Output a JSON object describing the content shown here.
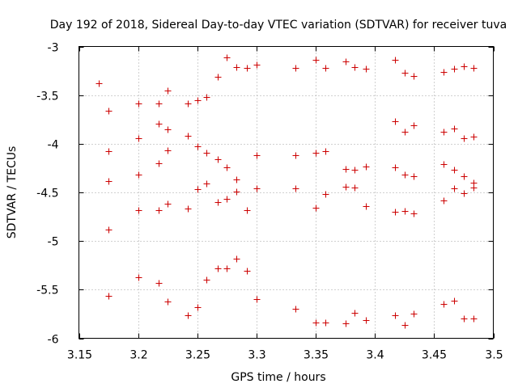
{
  "chart_data": {
    "type": "scatter",
    "title": "Day 192 of 2018, Sidereal Day-to-day VTEC variation (SDTVAR) for receiver tuva",
    "xlabel": "GPS time / hours",
    "ylabel": "SDTVAR / TECUs",
    "xlim": [
      3.15,
      3.5
    ],
    "ylim": [
      -6,
      -3
    ],
    "xticks": [
      3.15,
      3.2,
      3.25,
      3.3,
      3.35,
      3.4,
      3.45,
      3.5
    ],
    "xtick_labels": [
      "3.15",
      "3.2",
      "3.25",
      "3.3",
      "3.35",
      "3.4",
      "3.45",
      "3.5"
    ],
    "yticks": [
      -3,
      -3.5,
      -4,
      -4.5,
      -5,
      -5.5,
      -6
    ],
    "ytick_labels": [
      "-3",
      "-3.5",
      "-4",
      "-4.5",
      "-5",
      "-5.5",
      "-6"
    ],
    "grid": true,
    "marker_color": "#cc0000",
    "series": [
      {
        "name": "SDTVAR",
        "points": [
          [
            3.167,
            -3.38
          ],
          [
            3.175,
            -3.66
          ],
          [
            3.175,
            -4.08
          ],
          [
            3.175,
            -4.38
          ],
          [
            3.175,
            -4.88
          ],
          [
            3.175,
            -5.56
          ],
          [
            3.2,
            -3.59
          ],
          [
            3.2,
            -3.94
          ],
          [
            3.2,
            -4.32
          ],
          [
            3.2,
            -4.68
          ],
          [
            3.2,
            -5.37
          ],
          [
            3.217,
            -3.59
          ],
          [
            3.217,
            -3.79
          ],
          [
            3.217,
            -4.2
          ],
          [
            3.217,
            -4.68
          ],
          [
            3.217,
            -5.43
          ],
          [
            3.225,
            -3.45
          ],
          [
            3.225,
            -3.85
          ],
          [
            3.225,
            -4.07
          ],
          [
            3.225,
            -4.62
          ],
          [
            3.225,
            -5.62
          ],
          [
            3.242,
            -3.59
          ],
          [
            3.242,
            -3.92
          ],
          [
            3.242,
            -4.67
          ],
          [
            3.242,
            -5.76
          ],
          [
            3.25,
            -3.55
          ],
          [
            3.25,
            -4.03
          ],
          [
            3.25,
            -4.47
          ],
          [
            3.25,
            -5.68
          ],
          [
            3.258,
            -3.52
          ],
          [
            3.258,
            -4.09
          ],
          [
            3.258,
            -4.41
          ],
          [
            3.258,
            -5.4
          ],
          [
            3.267,
            -3.31
          ],
          [
            3.267,
            -4.16
          ],
          [
            3.267,
            -4.6
          ],
          [
            3.267,
            -5.28
          ],
          [
            3.275,
            -3.11
          ],
          [
            3.275,
            -4.24
          ],
          [
            3.275,
            -4.57
          ],
          [
            3.275,
            -5.28
          ],
          [
            3.283,
            -3.21
          ],
          [
            3.283,
            -4.37
          ],
          [
            3.283,
            -4.49
          ],
          [
            3.283,
            -5.18
          ],
          [
            3.292,
            -3.22
          ],
          [
            3.292,
            -4.68
          ],
          [
            3.292,
            -5.31
          ],
          [
            3.3,
            -3.19
          ],
          [
            3.3,
            -4.12
          ],
          [
            3.3,
            -4.46
          ],
          [
            3.3,
            -5.6
          ],
          [
            3.333,
            -3.22
          ],
          [
            3.333,
            -4.12
          ],
          [
            3.333,
            -4.46
          ],
          [
            3.333,
            -5.7
          ],
          [
            3.35,
            -3.14
          ],
          [
            3.35,
            -4.09
          ],
          [
            3.35,
            -4.66
          ],
          [
            3.35,
            -5.84
          ],
          [
            3.358,
            -3.22
          ],
          [
            3.358,
            -4.08
          ],
          [
            3.358,
            -4.52
          ],
          [
            3.358,
            -5.84
          ],
          [
            3.375,
            -3.15
          ],
          [
            3.375,
            -4.26
          ],
          [
            3.375,
            -4.44
          ],
          [
            3.375,
            -5.85
          ],
          [
            3.383,
            -3.21
          ],
          [
            3.383,
            -4.27
          ],
          [
            3.383,
            -4.45
          ],
          [
            3.383,
            -5.74
          ],
          [
            3.392,
            -3.23
          ],
          [
            3.392,
            -4.23
          ],
          [
            3.392,
            -4.64
          ],
          [
            3.392,
            -5.81
          ],
          [
            3.417,
            -3.14
          ],
          [
            3.417,
            -3.77
          ],
          [
            3.417,
            -4.24
          ],
          [
            3.417,
            -4.7
          ],
          [
            3.417,
            -5.76
          ],
          [
            3.425,
            -3.27
          ],
          [
            3.425,
            -3.88
          ],
          [
            3.425,
            -4.32
          ],
          [
            3.425,
            -4.69
          ],
          [
            3.425,
            -5.86
          ],
          [
            3.433,
            -3.3
          ],
          [
            3.433,
            -3.81
          ],
          [
            3.433,
            -4.33
          ],
          [
            3.433,
            -4.72
          ],
          [
            3.433,
            -5.75
          ],
          [
            3.458,
            -3.26
          ],
          [
            3.458,
            -3.88
          ],
          [
            3.458,
            -4.21
          ],
          [
            3.458,
            -4.58
          ],
          [
            3.458,
            -5.65
          ],
          [
            3.467,
            -3.23
          ],
          [
            3.467,
            -3.84
          ],
          [
            3.467,
            -4.27
          ],
          [
            3.467,
            -4.46
          ],
          [
            3.467,
            -5.61
          ],
          [
            3.475,
            -3.2
          ],
          [
            3.475,
            -3.94
          ],
          [
            3.475,
            -4.33
          ],
          [
            3.475,
            -4.51
          ],
          [
            3.475,
            -5.8
          ],
          [
            3.483,
            -3.22
          ],
          [
            3.483,
            -3.93
          ],
          [
            3.483,
            -4.4
          ],
          [
            3.483,
            -4.45
          ],
          [
            3.483,
            -5.8
          ]
        ]
      }
    ]
  }
}
